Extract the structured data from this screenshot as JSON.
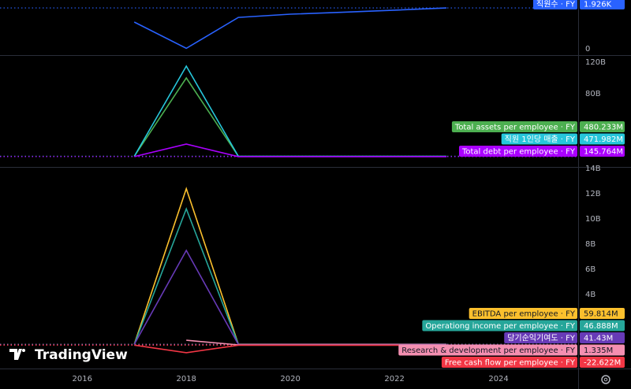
{
  "chart_data": [
    {
      "type": "line",
      "xlim": [
        2014.42,
        2025.53
      ],
      "ylim": [
        -300,
        2300
      ],
      "yticks": [
        0
      ],
      "x": [
        2017,
        2018,
        2019,
        2020,
        2021,
        2022,
        2023
      ],
      "series": [
        {
          "name": "직원수 · FY",
          "color": "#2962ff",
          "values": [
            1260,
            20,
            1480,
            1630,
            1720,
            1820,
            1926
          ],
          "value_labels": [
            null,
            null,
            null,
            null,
            null,
            null,
            "1.926K"
          ]
        }
      ]
    },
    {
      "type": "line",
      "xlim": [
        2014.42,
        2025.53
      ],
      "ylim": [
        -13000000000,
        129000000000
      ],
      "yticks": [
        {
          "value": 40000000000,
          "label": "40B"
        },
        {
          "value": 80000000000,
          "label": "80B"
        },
        {
          "value": 120000000000,
          "label": "120B"
        }
      ],
      "x": [
        2017,
        2018,
        2019,
        2020,
        2021,
        2022,
        2023
      ],
      "series": [
        {
          "name": "Total assets per employee · FY",
          "color": "#4caf50",
          "values": [
            400000000,
            100000000000,
            470000000,
            475000000,
            478000000,
            479000000,
            480233000
          ],
          "value_labels": [
            null,
            null,
            null,
            null,
            null,
            null,
            "480.233M"
          ]
        },
        {
          "name": "직원 1인당 매출 · FY",
          "color": "#26c6da",
          "values": [
            400000000,
            115000000000,
            460000000,
            465000000,
            468000000,
            470000000,
            471982000
          ],
          "value_labels": [
            null,
            null,
            null,
            null,
            null,
            null,
            "471.982M"
          ]
        },
        {
          "name": "Total debt per employee · FY",
          "color": "#aa00ff",
          "values": [
            140000000,
            16000000000,
            143000000,
            144000000,
            145000000,
            145500000,
            145764000
          ],
          "value_labels": [
            null,
            null,
            null,
            null,
            null,
            null,
            "145.764M"
          ]
        }
      ]
    },
    {
      "type": "line",
      "xlim": [
        2014.42,
        2025.53
      ],
      "ylim": [
        -1875000000,
        14125000000
      ],
      "xticks": [
        2016,
        2018,
        2020,
        2022,
        2024
      ],
      "yticks": [
        {
          "value": 4000000000,
          "label": "4B"
        },
        {
          "value": 6000000000,
          "label": "6B"
        },
        {
          "value": 8000000000,
          "label": "8B"
        },
        {
          "value": 10000000000,
          "label": "10B"
        },
        {
          "value": 12000000000,
          "label": "12B"
        },
        {
          "value": 14000000000,
          "label": "14B"
        }
      ],
      "x": [
        2017,
        2018,
        2019,
        2020,
        2021,
        2022,
        2023
      ],
      "series": [
        {
          "name": "EBITDA per employee · FY",
          "color": "#fbc02d",
          "values": [
            50000000,
            12400000000,
            55000000,
            57000000,
            58000000,
            59000000,
            59814000
          ],
          "value_labels": [
            null,
            null,
            null,
            null,
            null,
            null,
            "59.814M"
          ]
        },
        {
          "name": "Operationg income per employee · FY",
          "color": "#26a69a",
          "values": [
            40000000,
            10800000000,
            45000000,
            46000000,
            46500000,
            46700000,
            46888000
          ],
          "value_labels": [
            null,
            null,
            null,
            null,
            null,
            null,
            "46.888M"
          ]
        },
        {
          "name": "당기순익기여도 · FY",
          "color": "#673ab7",
          "values": [
            35000000,
            7500000000,
            40000000,
            41000000,
            41200000,
            41300000,
            41430000
          ],
          "value_labels": [
            null,
            null,
            null,
            null,
            null,
            null,
            "41.43M"
          ]
        },
        {
          "name": "Research & development  per employee · FY",
          "color": "#f48fb1",
          "values": [
            null,
            370000000,
            1200000,
            1250000,
            1300000,
            1320000,
            1335000
          ],
          "value_labels": [
            null,
            null,
            null,
            null,
            null,
            null,
            "1.335M"
          ]
        },
        {
          "name": "Free cash flow per employee · FY",
          "color": "#f23645",
          "values": [
            -20000000,
            -620000000,
            -22000000,
            -22200000,
            -22400000,
            -22500000,
            -22622000
          ],
          "value_labels": [
            null,
            null,
            null,
            null,
            null,
            null,
            "-22.622M"
          ]
        }
      ]
    }
  ],
  "watermark": "TradingView"
}
